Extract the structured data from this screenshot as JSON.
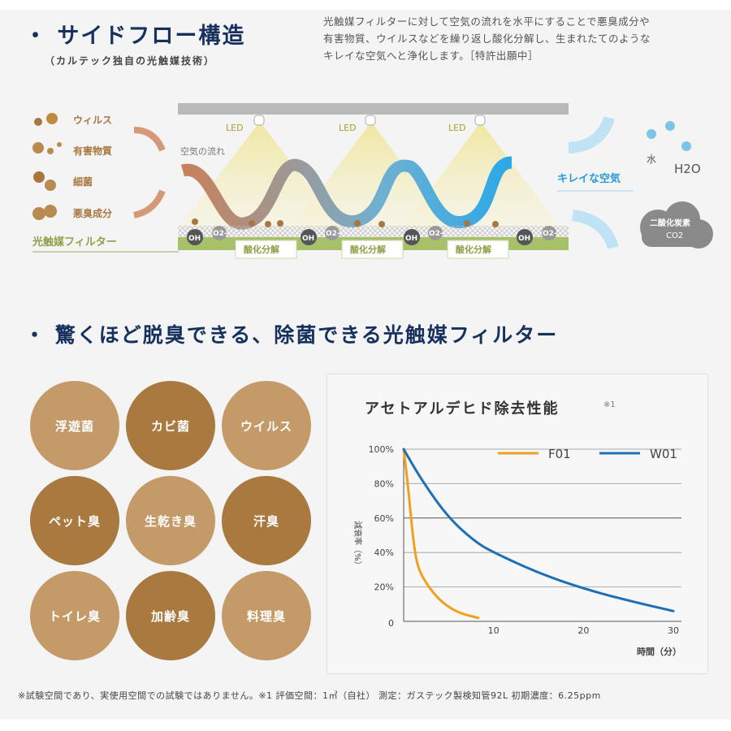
{
  "section1": {
    "title": "・ サイドフロー構造",
    "subtitle": "（カルテック独自の光触媒技術）",
    "description": [
      "光触媒フィルターに対して空気の流れを水平にすることで悪臭成分や",
      "有害物質、ウイルスなどを繰り返し酸化分解し、生まれたてのような",
      "キレイな空気へと浄化します。［特許出願中］"
    ]
  },
  "diagram": {
    "inputs": [
      "ウィルス",
      "有害物質",
      "細菌",
      "悪臭成分"
    ],
    "filter_label": "光触媒フィルター",
    "led_label": "LED",
    "airflow_label": "空気の流れ",
    "oh_label": "OH",
    "o2_label": "O2-",
    "oxidation_label": "酸化分解",
    "clean_air_label": "キレイな空気",
    "water_label": "水",
    "h2o_label": "H2O",
    "co2_label_1": "二酸化炭素",
    "co2_label_2": "CO2",
    "colors": {
      "brown": "#a8773f",
      "blue": "#3aa6e0",
      "filter_green": "#9cb85a",
      "navy": "#17315e"
    }
  },
  "section2": {
    "title": "・ 驚くほど脱臭できる、除菌できる光触媒フィルター",
    "targets": [
      "浮遊菌",
      "カビ菌",
      "ウイルス",
      "ペット臭",
      "生乾き臭",
      "汗臭",
      "トイレ臭",
      "加齢臭",
      "料理臭"
    ]
  },
  "chart_data": {
    "type": "line",
    "title": "アセトアルデヒド除去性能",
    "title_note": "※1",
    "xlabel": "時間（分）",
    "ylabel": "減衰率（%）",
    "xlim": [
      0,
      30
    ],
    "ylim": [
      0,
      100
    ],
    "xticks": [
      "10",
      "20",
      "30"
    ],
    "yticks": [
      "0",
      "20%",
      "40%",
      "60%",
      "80%",
      "100%"
    ],
    "grid": true,
    "legend_position": "top-right",
    "series": [
      {
        "name": "F01",
        "color": "#f0a01e",
        "x": [
          0,
          0.5,
          1,
          1.5,
          2.5,
          4,
          6,
          8.3
        ],
        "y": [
          100,
          78,
          50,
          32,
          22,
          12,
          5,
          2
        ]
      },
      {
        "name": "W01",
        "color": "#1f6fb5",
        "x": [
          0,
          2,
          5,
          8,
          10,
          15,
          20,
          25,
          30
        ],
        "y": [
          100,
          82,
          60,
          46,
          40,
          28,
          19,
          12,
          6
        ]
      }
    ]
  },
  "footnote": "※試験空間であり、実使用空間での試験ではありません。※1 評価空間：1㎥（自社） 測定：ガステック製検知管92L 初期濃度：6.25ppm"
}
